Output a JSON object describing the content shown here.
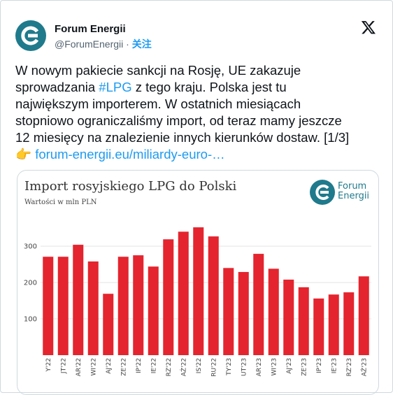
{
  "header": {
    "name": "Forum Energii",
    "handle": "@ForumEnergii",
    "separator": "·",
    "follow": "关注"
  },
  "post": {
    "lines": [
      "W nowym pakiecie sankcji na Rosję, UE zakazuje",
      [
        "sprowadzania ",
        "#LPG",
        " z tego kraju. Polska jest tu"
      ],
      "największym importerem. W ostatnich miesiącach",
      "stopniowo ograniczaliśmy import, od teraz mamy jeszcze",
      "12 miesięcy na znalezienie innych kierunków dostaw. [1/3]"
    ],
    "link_emoji": "👉",
    "link": "forum-energii.eu/miliardy-euro-…"
  },
  "chart_data": {
    "type": "bar",
    "title": "Import rosyjskiego LPG do Polski",
    "subtitle": "Wartości w mln PLN",
    "logo": [
      "Forum",
      "Energii"
    ],
    "categories": [
      "Y'22",
      "JT'22",
      "AR'22",
      "WI'22",
      "AJ'22",
      "ZE'22",
      "IP'22",
      "IE'22",
      "RZ'22",
      "AŹ'22",
      "IS'22",
      "RU'22",
      "TY'23",
      "UT'23",
      "AR'23",
      "WI'23",
      "AJ'23",
      "ZE'23",
      "IP'23",
      "IE'23",
      "RZ'23",
      "AŹ'23"
    ],
    "values": [
      271,
      271,
      304,
      258,
      169,
      271,
      275,
      244,
      319,
      340,
      352,
      327,
      240,
      229,
      279,
      238,
      208,
      187,
      156,
      167,
      173,
      217
    ],
    "color": "#e4242e",
    "ylim": [
      0,
      360
    ],
    "yticks": [
      100,
      200,
      300
    ],
    "grid": true
  }
}
